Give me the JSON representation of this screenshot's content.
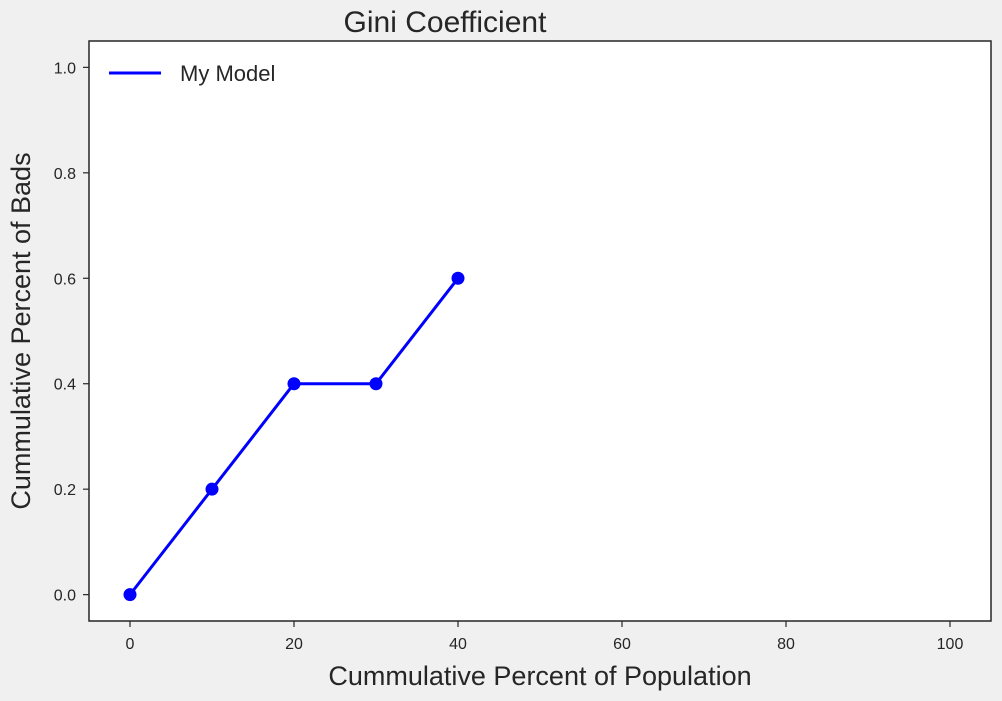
{
  "chart_data": {
    "type": "line",
    "title": "Gini Coefficient",
    "xlabel": "Cummulative Percent of Population",
    "ylabel": "Cummulative Percent of Bads",
    "xlim": [
      -5,
      105
    ],
    "ylim": [
      -0.05,
      1.05
    ],
    "xticks": [
      0,
      20,
      40,
      60,
      80,
      100
    ],
    "yticks": [
      0.0,
      0.2,
      0.4,
      0.6,
      0.8,
      1.0
    ],
    "xtick_labels": [
      "0",
      "20",
      "40",
      "60",
      "80",
      "100"
    ],
    "ytick_labels": [
      "0.0",
      "0.2",
      "0.4",
      "0.6",
      "0.8",
      "1.0"
    ],
    "grid": false,
    "legend_position": "top-left",
    "series": [
      {
        "name": "My Model",
        "color": "#0000ff",
        "marker": "circle",
        "x": [
          0,
          10,
          20,
          30,
          40
        ],
        "y": [
          0.0,
          0.2,
          0.4,
          0.4,
          0.6
        ]
      }
    ]
  },
  "colors": {
    "background": "#f0f0f0",
    "plot_area": "#ffffff",
    "axis": "#262626",
    "series": "#0000ff"
  }
}
